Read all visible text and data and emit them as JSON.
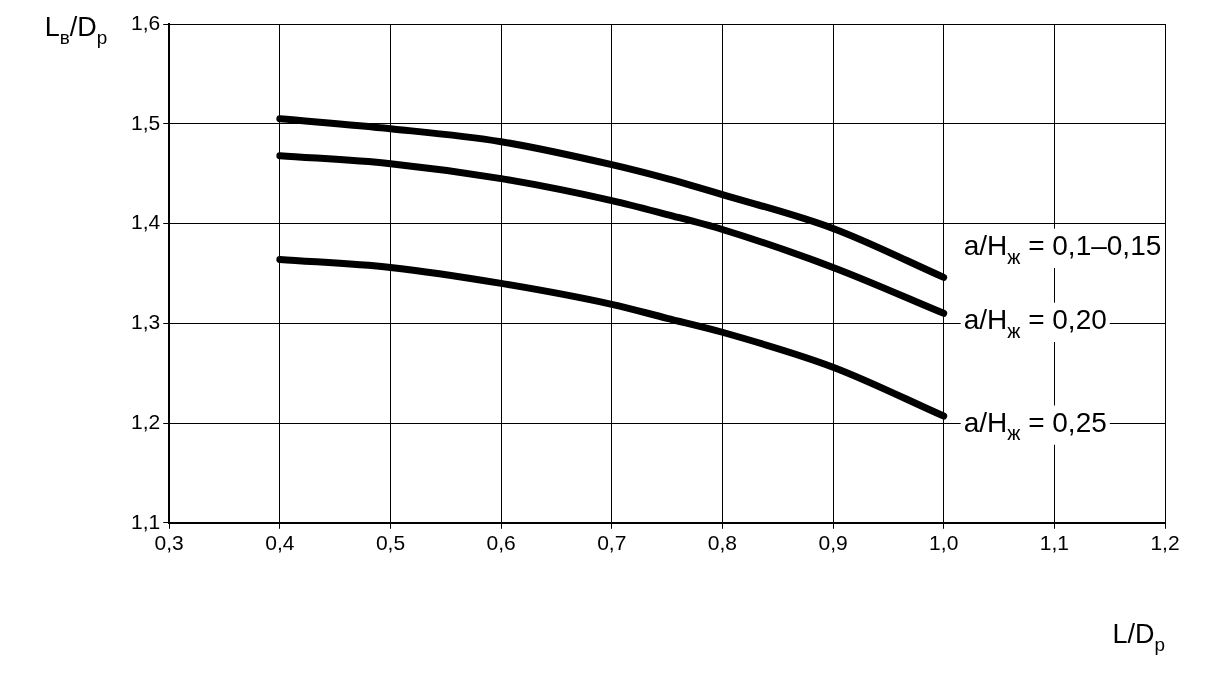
{
  "chart_data": {
    "type": "line",
    "xlabel": "L/D$_{р}$",
    "ylabel": "L$_{в}$/D$_{р}$",
    "x": [
      0.4,
      0.5,
      0.6,
      0.7,
      0.75,
      0.8,
      0.9,
      1.0
    ],
    "series": [
      {
        "name": "a/H$_{ж}$ = 0,1–0,15",
        "color": "#000000",
        "values": [
          1.505,
          1.495,
          1.482,
          1.459,
          1.445,
          1.429,
          1.395,
          1.346
        ]
      },
      {
        "name": "a/H$_{ж}$ = 0,20",
        "color": "#000000",
        "values": [
          1.468,
          1.46,
          1.445,
          1.423,
          1.409,
          1.394,
          1.356,
          1.31
        ]
      },
      {
        "name": "a/H$_{ж}$ = 0,25",
        "color": "#000000",
        "values": [
          1.364,
          1.356,
          1.34,
          1.319,
          1.305,
          1.291,
          1.256,
          1.207
        ]
      }
    ],
    "xlim": [
      0.3,
      1.2
    ],
    "xticks": [
      {
        "value": 0.3,
        "label": "0,3"
      },
      {
        "value": 0.4,
        "label": "0,4"
      },
      {
        "value": 0.5,
        "label": "0,5"
      },
      {
        "value": 0.6,
        "label": "0,6"
      },
      {
        "value": 0.7,
        "label": "0,7"
      },
      {
        "value": 0.8,
        "label": "0,8"
      },
      {
        "value": 0.9,
        "label": "0,9"
      },
      {
        "value": 1.0,
        "label": "1,0"
      },
      {
        "value": 1.1,
        "label": "1,1"
      },
      {
        "value": 1.2,
        "label": "1,2"
      }
    ],
    "ylim": [
      1.1,
      1.6
    ],
    "yticks": [
      {
        "value": 1.1,
        "label": "1,1"
      },
      {
        "value": 1.2,
        "label": "1,2"
      },
      {
        "value": 1.3,
        "label": "1,3"
      },
      {
        "value": 1.4,
        "label": "1,4"
      },
      {
        "value": 1.5,
        "label": "1,5"
      },
      {
        "value": 1.6,
        "label": "1,6"
      }
    ],
    "grid": true,
    "legend": false,
    "marker": "none",
    "line_style": "solid"
  }
}
